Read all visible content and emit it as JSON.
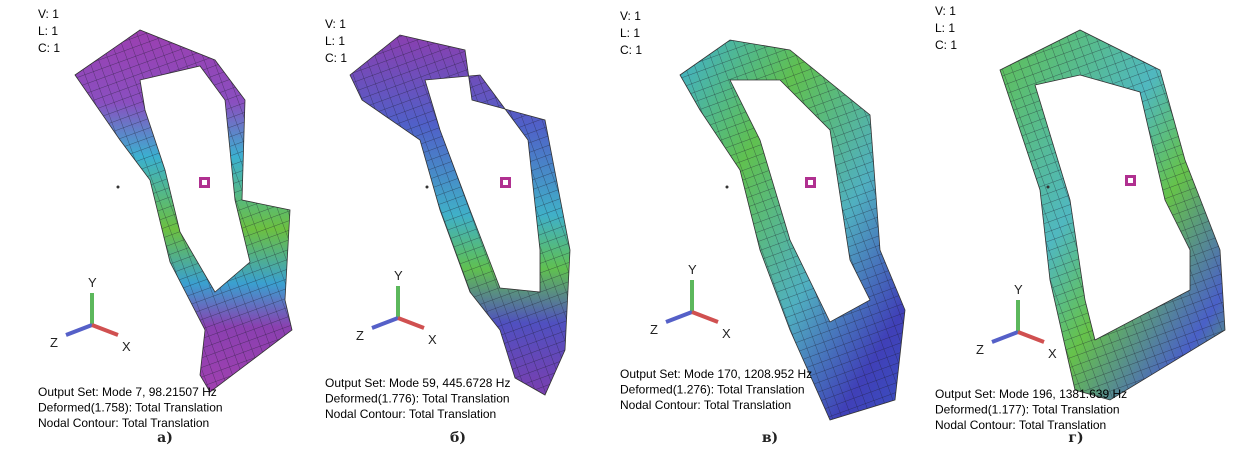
{
  "panels": [
    {
      "view": [
        "V: 1",
        "L: 1",
        "C: 1"
      ],
      "axes": [
        "Y",
        "Z",
        "X"
      ],
      "output": [
        "Output Set: Mode 7, 98.21507 Hz",
        "Deformed(1.758): Total Translation",
        "Nodal Contour: Total Translation"
      ],
      "caption": "а)"
    },
    {
      "view": [
        "V: 1",
        "L: 1",
        "C: 1"
      ],
      "axes": [
        "Y",
        "Z",
        "X"
      ],
      "output": [
        "Output Set: Mode 59, 445.6728 Hz",
        "Deformed(1.776): Total Translation",
        "Nodal Contour: Total Translation"
      ],
      "caption": "б)"
    },
    {
      "view": [
        "V: 1",
        "L: 1",
        "C: 1"
      ],
      "axes": [
        "Y",
        "Z",
        "X"
      ],
      "output": [
        "Output Set: Mode 170, 1208.952 Hz",
        "Deformed(1.276): Total Translation",
        "Nodal Contour: Total Translation"
      ],
      "caption": "в)"
    },
    {
      "view": [
        "V: 1",
        "L: 1",
        "C: 1"
      ],
      "axes": [
        "Y",
        "Z",
        "X"
      ],
      "output": [
        "Output Set: Mode 196, 1381.639 Hz",
        "Deformed(1.177): Total Translation",
        "Nodal Contour: Total Translation"
      ],
      "caption": "г)"
    }
  ]
}
